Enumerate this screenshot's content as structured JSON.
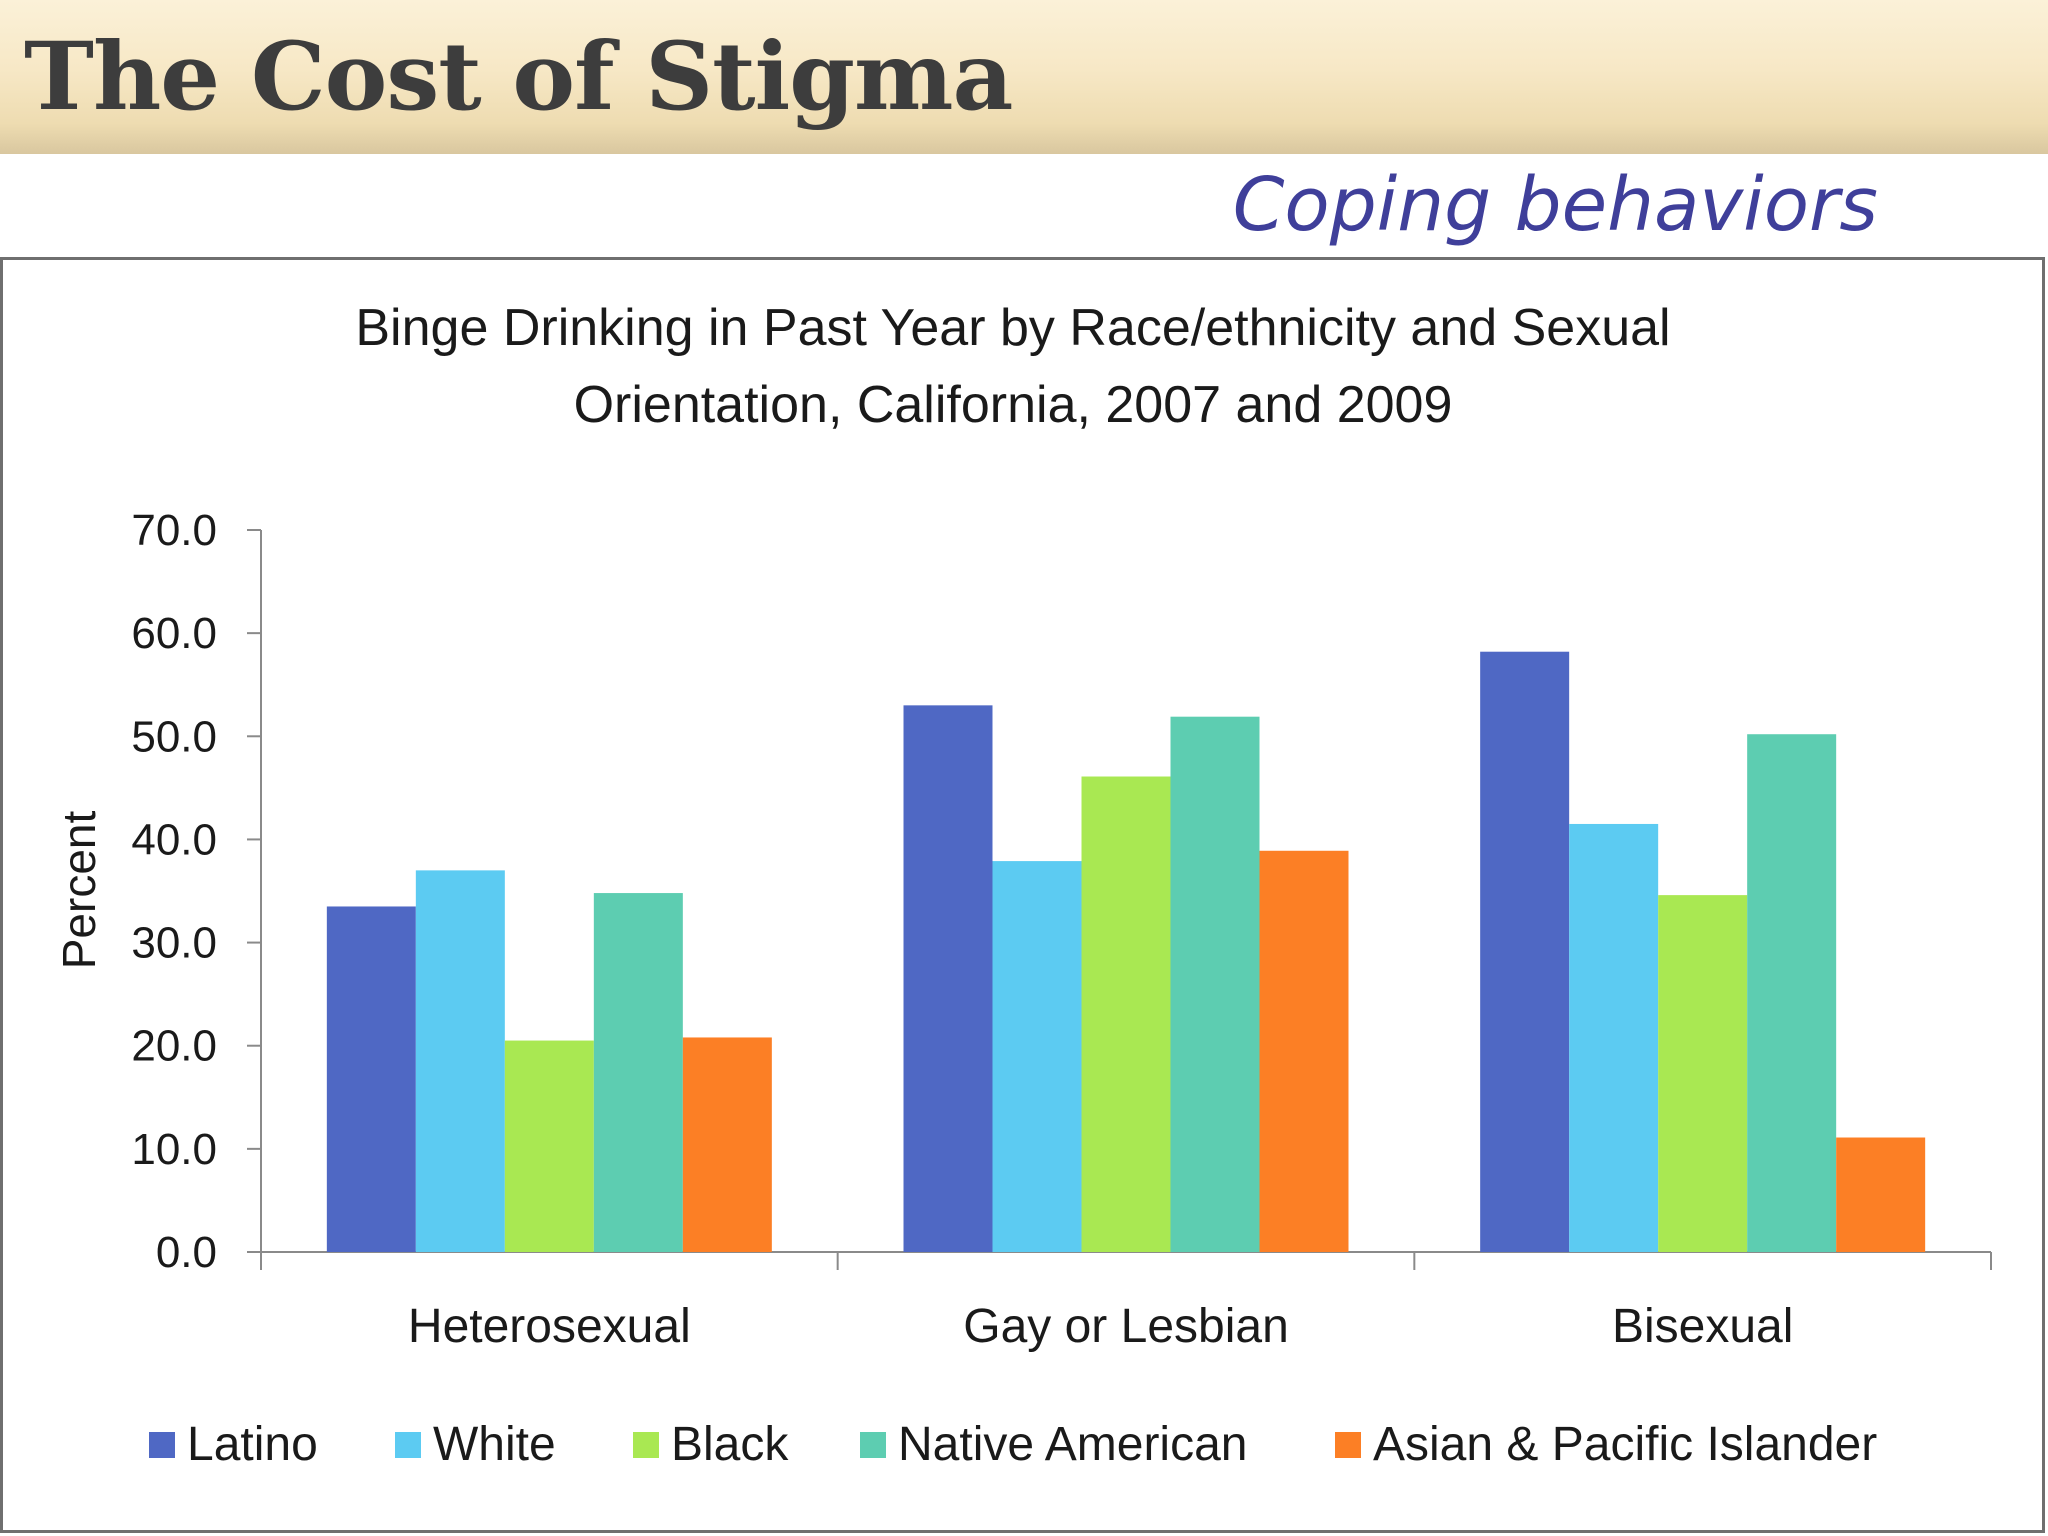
{
  "slide": {
    "title": "The Cost of Stigma",
    "subtitle": "Coping behaviors"
  },
  "colors": {
    "header_band": "#f3e4bd",
    "title_text": "#3d3d3d",
    "subtitle_text": "#3f3f9a"
  },
  "chart_data": {
    "type": "bar",
    "title_lines": [
      "Binge Drinking in Past Year by Race/ethnicity and Sexual",
      "Orientation, California,  2007 and 2009"
    ],
    "xlabel": "",
    "ylabel": "Percent",
    "ylim": [
      0,
      70
    ],
    "yticks": [
      "0.0",
      "10.0",
      "20.0",
      "30.0",
      "40.0",
      "50.0",
      "60.0",
      "70.0"
    ],
    "grid": false,
    "legend_position": "bottom",
    "categories": [
      "Heterosexual",
      "Gay or Lesbian",
      "Bisexual"
    ],
    "series": [
      {
        "name": "Latino",
        "color": "#4f68c4",
        "values": [
          33.5,
          53.0,
          58.2
        ]
      },
      {
        "name": "White",
        "color": "#5ccbf2",
        "values": [
          37.0,
          37.9,
          41.5
        ]
      },
      {
        "name": "Black",
        "color": "#a9e852",
        "values": [
          20.5,
          46.1,
          34.6
        ]
      },
      {
        "name": "Native American",
        "color": "#5dcdb1",
        "values": [
          34.8,
          51.9,
          50.2
        ]
      },
      {
        "name": "Asian & Pacific Islander",
        "color": "#fc7f25",
        "values": [
          20.8,
          38.9,
          11.1
        ]
      }
    ]
  }
}
